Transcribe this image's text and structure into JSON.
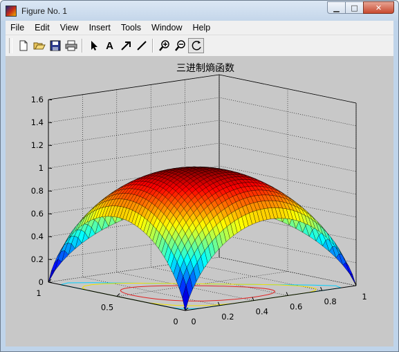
{
  "window": {
    "title": "Figure No. 1",
    "minimize_glyph": "▁",
    "maximize_glyph": "□",
    "close_glyph": "✕"
  },
  "menu": [
    "File",
    "Edit",
    "View",
    "Insert",
    "Tools",
    "Window",
    "Help"
  ],
  "toolbar": {
    "buttons": [
      "new-figure-icon",
      "open-file-icon",
      "save-icon",
      "print-icon",
      "edit-plot-arrow-icon",
      "insert-text-icon",
      "insert-arrow-icon",
      "insert-line-icon",
      "zoom-in-icon",
      "zoom-out-icon",
      "rotate-3d-icon"
    ],
    "labels": {
      "insert_text": "A"
    },
    "pressed": "rotate-3d-icon"
  },
  "chart_data": {
    "type": "surface",
    "title": "三进制熵函数",
    "xlabel": "",
    "ylabel": "",
    "zlabel": "",
    "xlim": [
      0,
      1
    ],
    "ylim": [
      0,
      1
    ],
    "zlim": [
      0,
      1.6
    ],
    "x_ticks": [
      "0",
      "0.2",
      "0.4",
      "0.6",
      "0.8",
      "1"
    ],
    "y_ticks": [
      "0",
      "0.5",
      "1"
    ],
    "z_ticks": [
      "0",
      "0.2",
      "0.4",
      "0.6",
      "0.8",
      "1",
      "1.2",
      "1.4",
      "1.6"
    ],
    "function": "ternary entropy H(p,q) = -p·ln p - q·ln q - (1-p-q)·ln(1-p-q)",
    "max_value": 1.0986,
    "grid": true,
    "colormap": "jet",
    "base_contours": true
  }
}
